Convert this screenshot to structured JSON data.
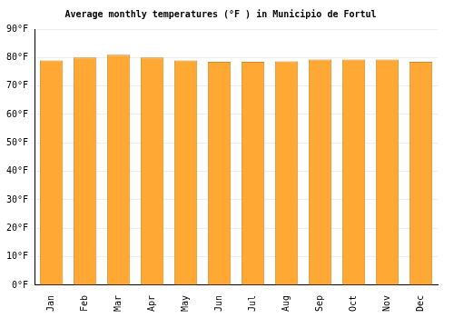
{
  "chart_data": {
    "type": "bar",
    "title": "Average monthly temperatures (°F ) in Municipio de Fortul",
    "categories": [
      "Jan",
      "Feb",
      "Mar",
      "Apr",
      "May",
      "Jun",
      "Jul",
      "Aug",
      "Sep",
      "Oct",
      "Nov",
      "Dec"
    ],
    "values": [
      79,
      80,
      81,
      80,
      79,
      78.5,
      78.5,
      78.7,
      79.3,
      79.3,
      79.3,
      78.5
    ],
    "color": "#ffa833",
    "ylim": [
      0,
      90
    ],
    "yticks": [
      {
        "value": 0,
        "label": "0°F"
      },
      {
        "value": 10,
        "label": "10°F"
      },
      {
        "value": 20,
        "label": "20°F"
      },
      {
        "value": 30,
        "label": "30°F"
      },
      {
        "value": 40,
        "label": "40°F"
      },
      {
        "value": 50,
        "label": "50°F"
      },
      {
        "value": 60,
        "label": "60°F"
      },
      {
        "value": 70,
        "label": "70°F"
      },
      {
        "value": 80,
        "label": "80°F"
      },
      {
        "value": 90,
        "label": "90°F"
      }
    ],
    "grid": true
  }
}
